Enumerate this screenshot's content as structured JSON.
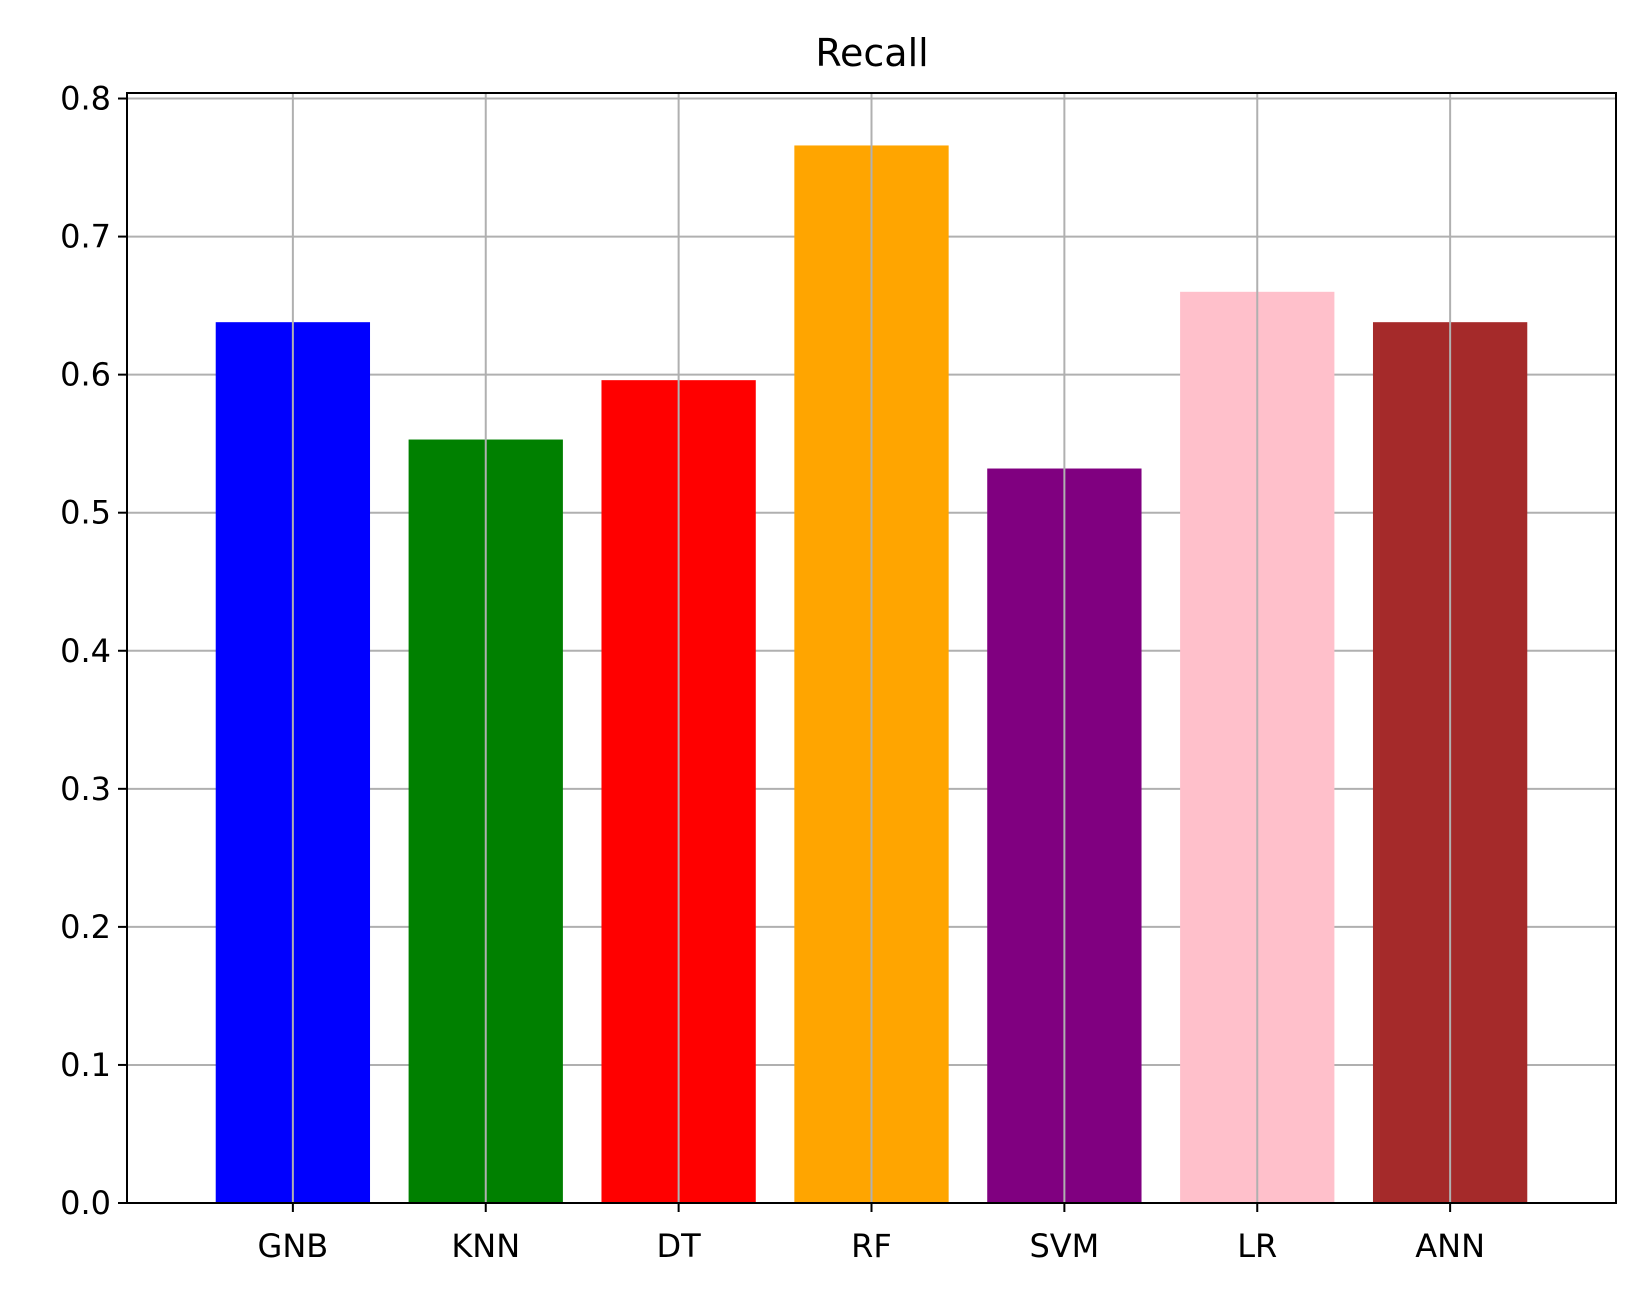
{
  "chart_data": {
    "type": "bar",
    "title": "Recall",
    "xlabel": "",
    "ylabel": "",
    "categories": [
      "GNB",
      "KNN",
      "DT",
      "RF",
      "SVM",
      "LR",
      "ANN"
    ],
    "values": [
      0.638,
      0.553,
      0.596,
      0.766,
      0.532,
      0.66,
      0.638
    ],
    "colors": [
      "#0000ff",
      "#008000",
      "#ff0000",
      "#ffa500",
      "#800080",
      "#ffc0cb",
      "#a52a2a"
    ],
    "ylim": [
      0,
      0.804
    ],
    "yticks": [
      "0.0",
      "0.1",
      "0.2",
      "0.3",
      "0.4",
      "0.5",
      "0.6",
      "0.7",
      "0.8"
    ],
    "grid": true,
    "legend": "none"
  }
}
